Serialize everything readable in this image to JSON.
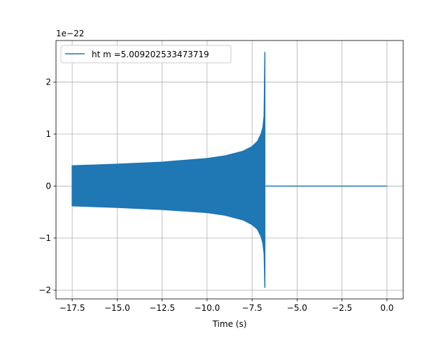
{
  "chart_data": {
    "type": "line",
    "title": "",
    "xlabel": "Time (s)",
    "ylabel": "",
    "y_offset_label": "1e−22",
    "xlim": [
      -18.4,
      0.9
    ],
    "ylim": [
      -2.17,
      2.8
    ],
    "xticks": [
      -17.5,
      -15.0,
      -12.5,
      -10.0,
      -7.5,
      -5.0,
      -2.5,
      0.0
    ],
    "xtick_labels": [
      "−17.5",
      "−15.0",
      "−12.5",
      "−10.0",
      "−7.5",
      "−5.0",
      "−2.5",
      "0.0"
    ],
    "yticks": [
      -2,
      -1,
      0,
      1,
      2
    ],
    "ytick_labels": [
      "−2",
      "−1",
      "0",
      "1",
      "2"
    ],
    "grid": true,
    "legend_position": "top-left",
    "series": [
      {
        "name": "ht m =5.009202533473719",
        "color": "#1f77b4",
        "envelope_t": [
          -17.5,
          -15.0,
          -12.5,
          -10.0,
          -9.0,
          -8.0,
          -7.5,
          -7.2,
          -7.0,
          -6.9,
          -6.83,
          -6.79
        ],
        "envelope_upper": [
          0.39,
          0.42,
          0.46,
          0.53,
          0.58,
          0.67,
          0.76,
          0.86,
          1.0,
          1.13,
          1.35,
          2.57
        ],
        "envelope_lower": [
          -0.38,
          -0.41,
          -0.45,
          -0.51,
          -0.56,
          -0.65,
          -0.74,
          -0.83,
          -0.97,
          -1.1,
          -1.3,
          -1.95
        ],
        "post_merger_t": [
          -6.75,
          0.0
        ],
        "post_merger_value": 0.0
      }
    ]
  }
}
